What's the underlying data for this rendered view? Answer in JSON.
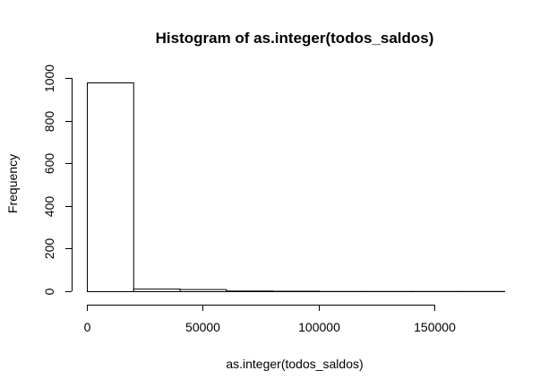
{
  "chart_data": {
    "type": "bar",
    "title": "Histogram of as.integer(todos_saldos)",
    "xlabel": "as.integer(todos_saldos)",
    "ylabel": "Frequency",
    "bins": [
      {
        "from": 0,
        "to": 20000,
        "count": 979
      },
      {
        "from": 20000,
        "to": 40000,
        "count": 12
      },
      {
        "from": 40000,
        "to": 60000,
        "count": 10
      },
      {
        "from": 60000,
        "to": 80000,
        "count": 3
      },
      {
        "from": 80000,
        "to": 100000,
        "count": 2
      },
      {
        "from": 100000,
        "to": 120000,
        "count": 1
      },
      {
        "from": 120000,
        "to": 140000,
        "count": 1
      },
      {
        "from": 140000,
        "to": 160000,
        "count": 1
      },
      {
        "from": 160000,
        "to": 180000,
        "count": 1
      }
    ],
    "xlim": [
      0,
      180000
    ],
    "ylim": [
      0,
      1000
    ],
    "x_ticks": [
      0,
      50000,
      100000,
      150000
    ],
    "x_tick_labels": [
      "0",
      "50000",
      "100000",
      "150000"
    ],
    "y_ticks": [
      0,
      200,
      400,
      600,
      800,
      1000
    ],
    "y_tick_labels": [
      "0",
      "200",
      "400",
      "600",
      "800",
      "1000"
    ],
    "grid": false,
    "bar_fill": "#ffffff",
    "bar_stroke": "#000000"
  }
}
